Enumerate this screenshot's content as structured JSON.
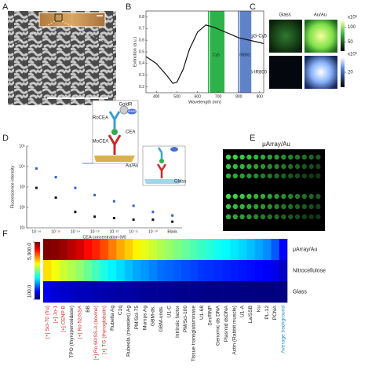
{
  "labels": [
    "A",
    "B",
    "C",
    "D",
    "E",
    "F"
  ],
  "panel_b": {
    "type": "line",
    "xlabel": "Wavelength (nm)",
    "ylabel": "Extinction (a.u.)",
    "x": [
      350,
      400,
      450,
      480,
      500,
      530,
      560,
      600,
      640,
      680,
      720,
      760,
      800,
      850,
      900,
      920
    ],
    "values": [
      0.46,
      0.4,
      0.3,
      0.23,
      0.24,
      0.35,
      0.52,
      0.67,
      0.73,
      0.71,
      0.68,
      0.65,
      0.62,
      0.6,
      0.58,
      0.57
    ],
    "color": "#111111",
    "xlim": [
      350,
      920
    ],
    "xticks": [
      400,
      500,
      600,
      700,
      800,
      900
    ],
    "ylim": [
      0.15,
      0.85
    ],
    "yticks": [
      0.2,
      0.3,
      0.4,
      0.5,
      0.6,
      0.7,
      0.8
    ],
    "bands": [
      {
        "name": "Cy5",
        "range": [
          650,
          730
        ],
        "color": "#2db34a"
      },
      {
        "name": "IR800",
        "range": [
          795,
          860
        ],
        "color": "#5f82c8"
      }
    ]
  },
  "panel_c": {
    "columns": [
      "Glass",
      "Au/Au"
    ],
    "rows": [
      "IgG-Cy5",
      "IgG-IR800"
    ],
    "colorbars": [
      {
        "unit": "x10³",
        "lim": [
          20,
          120
        ],
        "ticks": [
          50,
          100
        ]
      },
      {
        "unit": "x10³",
        "lim": [
          10,
          30
        ],
        "ticks": [
          20
        ]
      }
    ]
  },
  "panel_d": {
    "type": "scatter",
    "xlabel": "CEA concentration (M)",
    "ylabel": "Fluorescence intensity",
    "categories": [
      "10⁻¹⁶",
      "10⁻¹⁵",
      "10⁻¹⁴",
      "10⁻¹³",
      "10⁻¹²",
      "10⁻¹¹",
      "10⁻¹⁰",
      "Blank"
    ],
    "series": [
      {
        "name": "Au/Au",
        "color": "#2f5fd0",
        "values": [
          8000,
          3000,
          900,
          400,
          200,
          120,
          60,
          40
        ]
      },
      {
        "name": "Glass",
        "color": "#111111",
        "values": [
          900,
          300,
          60,
          35,
          30,
          25,
          25,
          20
        ]
      }
    ],
    "log": true,
    "ylim": [
      10,
      100000
    ],
    "yticks": [
      {
        "value": 10,
        "label": "10¹"
      },
      {
        "value": 100,
        "label": "10²"
      },
      {
        "value": 1000,
        "label": "10³"
      },
      {
        "value": 10000,
        "label": "10⁴"
      },
      {
        "value": 100000,
        "label": "10⁵"
      }
    ],
    "diagram": {
      "gold": "GoldR",
      "dye": "IR800",
      "detect": "RoCEA",
      "antigen": "CEA",
      "capture": "MoCEA",
      "au": "Au/Au",
      "glass": "Glass"
    }
  },
  "panel_e": {
    "title": "μArray/Au"
  },
  "panel_f": {
    "rows": [
      "μArray/Au",
      "Nitrocellulose",
      "Glass"
    ],
    "columns": [
      "[+] Scl-70 (fru)",
      "[+] Jo-1",
      "[+] CENP B",
      "TPO (thyroperoxidase)",
      "[+] Ro 52/SSA",
      "BB",
      "[+] Ro 60/SS-A (bovine)",
      "[+] TG (thyroglobulin)",
      "Rubella Ag",
      "C1q",
      "Rubeola (measles) Ag",
      "PM/Scl-75",
      "Mumps Ag",
      "GBM-ds.",
      "GBM-unds.",
      "U1-C",
      "Intrinsic factor",
      "PM/Scl-100",
      "Tissue transglutaminase",
      "U1-68",
      "Sm/RNP",
      "Genomic ds DNA",
      "Plasmid dsDNA",
      "Actin (Rabbit muscle)",
      "U1-A",
      "La/SSB",
      "Ku",
      "PL-12",
      "PCNA",
      "Average background"
    ],
    "column_colors": [
      "#d42a2a",
      "#d42a2a",
      "#d42a2a",
      "#222222",
      "#d42a2a",
      "#222222",
      "#d42a2a",
      "#d42a2a",
      "#222222",
      "#222222",
      "#222222",
      "#222222",
      "#222222",
      "#222222",
      "#222222",
      "#222222",
      "#222222",
      "#222222",
      "#222222",
      "#222222",
      "#222222",
      "#222222",
      "#222222",
      "#222222",
      "#222222",
      "#222222",
      "#222222",
      "#222222",
      "#222222",
      "#2a8fd0"
    ],
    "values": [
      [
        5000,
        4800,
        4500,
        4000,
        3600,
        3000,
        2700,
        2300,
        1900,
        1600,
        1400,
        1200,
        1050,
        950,
        850,
        780,
        700,
        640,
        580,
        540,
        500,
        460,
        430,
        400,
        370,
        340,
        310,
        280,
        230,
        160
      ],
      [
        1300,
        1100,
        950,
        850,
        760,
        650,
        560,
        480,
        420,
        380,
        340,
        310,
        290,
        270,
        250,
        240,
        230,
        220,
        210,
        200,
        195,
        190,
        185,
        180,
        175,
        170,
        165,
        160,
        150,
        130
      ],
      [
        150,
        140,
        135,
        130,
        125,
        125,
        120,
        120,
        118,
        115,
        115,
        112,
        110,
        110,
        108,
        108,
        106,
        105,
        105,
        104,
        103,
        103,
        102,
        102,
        101,
        101,
        100,
        100,
        100,
        100
      ]
    ],
    "colorbar": {
      "log": true,
      "lim": [
        100,
        5000
      ],
      "ticks": [
        {
          "value": 5000,
          "label": "5,000.0"
        },
        {
          "value": 100,
          "label": "100.0"
        }
      ]
    }
  }
}
